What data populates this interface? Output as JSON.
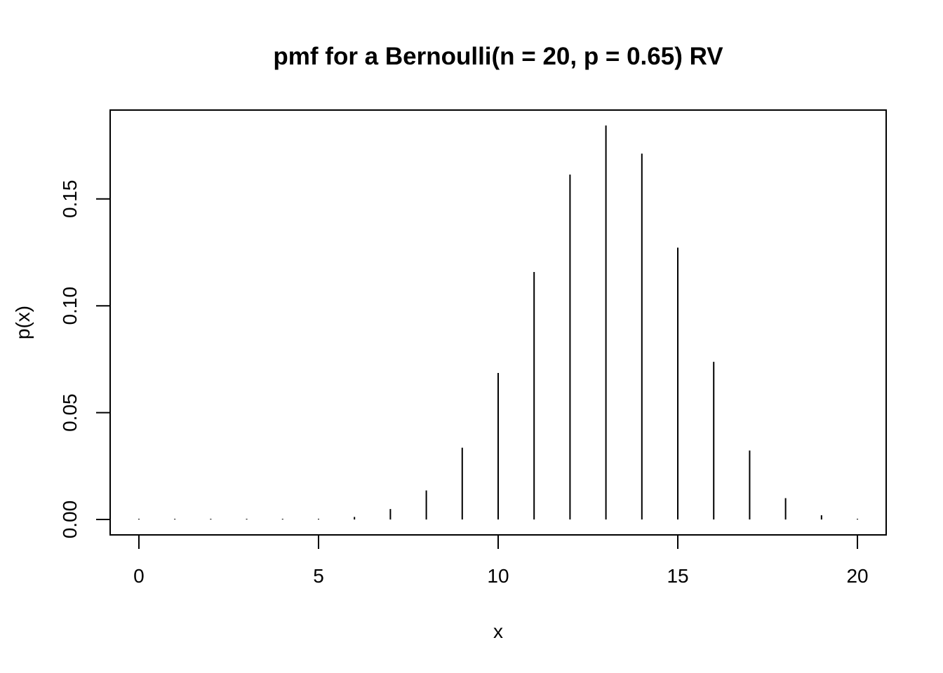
{
  "chart_data": {
    "type": "bar",
    "title": "pmf for a Bernoulli(n = 20, p = 0.65) RV",
    "xlabel": "x",
    "ylabel": "p(x)",
    "x": [
      0,
      1,
      2,
      3,
      4,
      5,
      6,
      7,
      8,
      9,
      10,
      11,
      12,
      13,
      14,
      15,
      16,
      17,
      18,
      19,
      20
    ],
    "values": [
      0.0,
      0.0,
      0.0,
      0.0,
      0.0,
      0.0,
      0.0012,
      0.0049,
      0.0136,
      0.0336,
      0.0686,
      0.1158,
      0.1614,
      0.1844,
      0.1712,
      0.1272,
      0.0738,
      0.0323,
      0.01,
      0.002,
      0.0002
    ],
    "xlim": [
      -0.8,
      20.8
    ],
    "ylim": [
      -0.0072,
      0.1916
    ],
    "xticks": [
      0,
      5,
      10,
      15,
      20
    ],
    "xtick_labels": [
      "0",
      "5",
      "10",
      "15",
      "20"
    ],
    "yticks": [
      0.0,
      0.05,
      0.1,
      0.15
    ],
    "ytick_labels": [
      "0.00",
      "0.05",
      "0.10",
      "0.15"
    ],
    "grid": false,
    "legend": "none",
    "bar_color": "#000000"
  }
}
